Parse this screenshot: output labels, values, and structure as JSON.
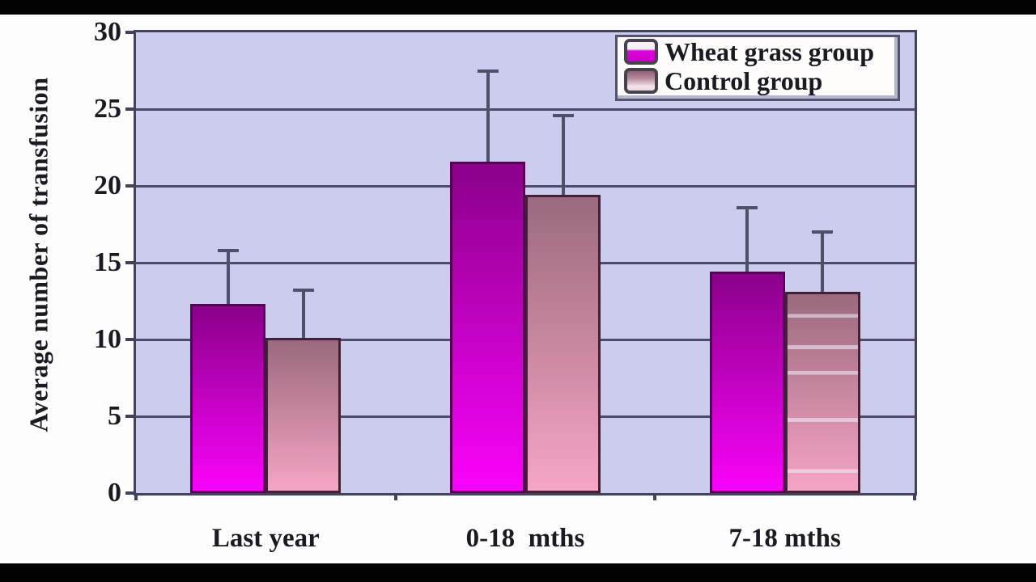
{
  "chart_data": {
    "type": "bar",
    "title": "",
    "ylabel": "Average number of transfusion",
    "xlabel": "",
    "categories": [
      "Last year",
      "0-18  mths",
      "7-18 mths"
    ],
    "y_ticks": [
      0,
      5,
      10,
      15,
      20,
      25,
      30
    ],
    "ylim": [
      0,
      30
    ],
    "grid": "horizontal",
    "legend_position": "top-right",
    "series": [
      {
        "name": "Wheat grass group",
        "values": [
          12.3,
          21.6,
          14.4
        ],
        "error_plus": [
          3.6,
          6.0,
          4.3
        ],
        "fill_top": "#8a0189",
        "fill_bottom": "#fa02fa",
        "border_color": "#570157",
        "key_gradient": "linear-gradient(180deg,#f6f0f4 0%,#f6f0f4 36%,#e001df 46%,#c801c8 100%)"
      },
      {
        "name": "Control group",
        "values": [
          10.1,
          19.4,
          13.1
        ],
        "error_plus": [
          3.2,
          5.3,
          4.0
        ],
        "fill_top": "#9a6a7e",
        "fill_bottom": "#f6a5c5",
        "border_color": "#422036",
        "key_gradient": "linear-gradient(180deg,#91607a 0%,#b88a9d 38%,#f2e4ea 78%,#eed3de 100%)"
      }
    ]
  },
  "colors": {
    "letterbox": "#010101",
    "page_bg": "#fdfdfd",
    "plot_bg": "#cbccee",
    "gridline": "#4d4b68",
    "axis": "#42435a",
    "error_bar": "#4c5068",
    "text": "#1a1a22",
    "legend_bg": "#fdfcfa",
    "legend_border": "#53536a"
  }
}
